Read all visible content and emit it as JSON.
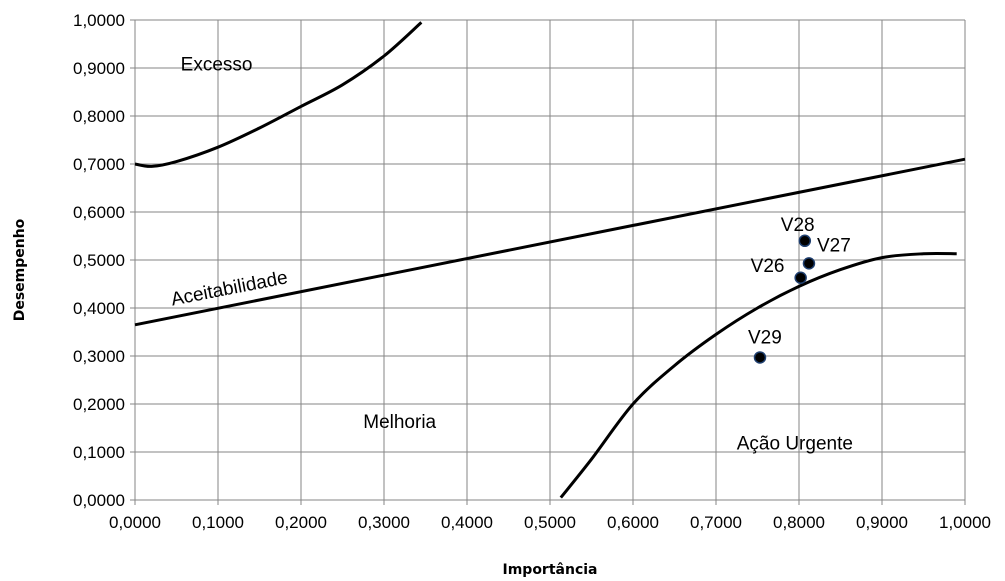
{
  "chart_data": {
    "type": "scatter",
    "xlabel": "Importância",
    "ylabel": "Desempenho",
    "xlim": [
      0,
      1
    ],
    "ylim": [
      0,
      1
    ],
    "x_ticks": [
      "0,0000",
      "0,1000",
      "0,2000",
      "0,3000",
      "0,4000",
      "0,5000",
      "0,6000",
      "0,7000",
      "0,8000",
      "0,9000",
      "1,0000"
    ],
    "y_ticks": [
      "0,0000",
      "0,1000",
      "0,2000",
      "0,3000",
      "0,4000",
      "0,5000",
      "0,6000",
      "0,7000",
      "0,8000",
      "0,9000",
      "1,0000"
    ],
    "grid": true,
    "points": [
      {
        "label": "V28",
        "x": 0.807,
        "y": 0.54
      },
      {
        "label": "V27",
        "x": 0.812,
        "y": 0.493
      },
      {
        "label": "V26",
        "x": 0.802,
        "y": 0.463
      },
      {
        "label": "V29",
        "x": 0.753,
        "y": 0.297
      }
    ],
    "curves": [
      {
        "name": "Excesso",
        "points": [
          [
            0.0,
            0.7
          ],
          [
            0.02,
            0.695
          ],
          [
            0.05,
            0.705
          ],
          [
            0.1,
            0.735
          ],
          [
            0.15,
            0.775
          ],
          [
            0.2,
            0.82
          ],
          [
            0.25,
            0.865
          ],
          [
            0.3,
            0.925
          ],
          [
            0.345,
            0.995
          ]
        ]
      },
      {
        "name": "Aceitabilidade",
        "points": [
          [
            0.0,
            0.365
          ],
          [
            1.0,
            0.71
          ]
        ]
      },
      {
        "name": "Ação Urgente",
        "points": [
          [
            0.513,
            0.005
          ],
          [
            0.55,
            0.085
          ],
          [
            0.6,
            0.2
          ],
          [
            0.65,
            0.28
          ],
          [
            0.7,
            0.345
          ],
          [
            0.75,
            0.4
          ],
          [
            0.8,
            0.445
          ],
          [
            0.85,
            0.48
          ],
          [
            0.9,
            0.505
          ],
          [
            0.95,
            0.513
          ],
          [
            0.99,
            0.513
          ]
        ]
      }
    ],
    "region_labels": [
      {
        "text": "Excesso",
        "x": 0.055,
        "y": 0.895
      },
      {
        "text": "Aceitabilidade",
        "x": 0.045,
        "y": 0.405
      },
      {
        "text": "Melhoria",
        "x": 0.275,
        "y": 0.15
      },
      {
        "text": "Ação Urgente",
        "x": 0.725,
        "y": 0.105
      }
    ]
  }
}
